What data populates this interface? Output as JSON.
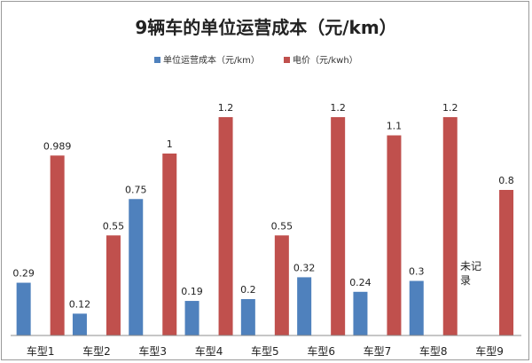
{
  "chart_data": {
    "type": "bar",
    "title": "9辆车的单位运营成本（元/km）",
    "categories": [
      "车型1",
      "车型2",
      "车型3",
      "车型4",
      "车型5",
      "车型6",
      "车型7",
      "车型8",
      "车型9"
    ],
    "series": [
      {
        "name": "单位运营成本（元/km）",
        "color": "#4f81bd",
        "values": [
          0.29,
          0.12,
          0.75,
          0.19,
          0.2,
          0.32,
          0.24,
          0.3,
          null
        ],
        "labels": [
          "0.29",
          "0.12",
          "0.75",
          "0.19",
          "0.2",
          "0.32",
          "0.24",
          "0.3",
          "未记录"
        ]
      },
      {
        "name": "电价（元/kwh）",
        "color": "#c0504d",
        "values": [
          0.989,
          0.55,
          1,
          1.2,
          0.55,
          1.2,
          1.1,
          1.2,
          0.8
        ],
        "labels": [
          "0.989",
          "0.55",
          "1",
          "1.2",
          "0.55",
          "1.2",
          "1.1",
          "1.2",
          "0.8"
        ]
      }
    ],
    "ylim": [
      0,
      1.2
    ],
    "grid": false,
    "legend": "top-center"
  }
}
